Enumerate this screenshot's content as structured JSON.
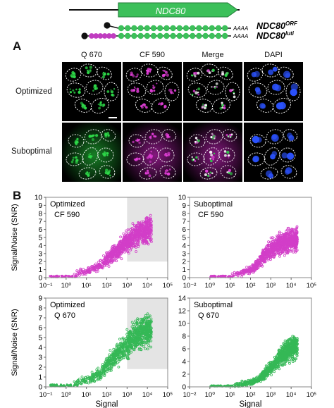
{
  "figure": {
    "gene_diagram": {
      "gene_label": "NDC80",
      "transcripts": [
        {
          "name_main": "NDC80",
          "name_sup": "ORF",
          "polyA": "AAAA"
        },
        {
          "name_main": "NDC80",
          "name_sup": "luti",
          "polyA": "AAAA"
        }
      ]
    },
    "panel_a": {
      "letter": "A",
      "columns": [
        "Q 670",
        "CF 590",
        "Merge",
        "DAPI"
      ],
      "rows": [
        "Optimized",
        "Suboptimal"
      ]
    },
    "panel_b": {
      "letter": "B"
    },
    "colors": {
      "magenta": "#d23ec8",
      "green": "#35b856",
      "gene_green": "#3cc05a",
      "gray_box": "#e4e4e4"
    }
  },
  "chart_data": [
    {
      "type": "scatter",
      "title": "Optimized",
      "subtitle": "CF 590",
      "xlabel": "",
      "ylabel": "Signal/Noise (SNR)",
      "xscale": "log",
      "xlim": [
        0.1,
        100000
      ],
      "ylim": [
        0,
        10
      ],
      "xticks": [
        "10⁻¹",
        "10⁰",
        "10¹",
        "10²",
        "10³",
        "10⁴",
        "10⁵"
      ],
      "yticks": [
        "0",
        "1",
        "2",
        "3",
        "4",
        "5",
        "6",
        "7",
        "8",
        "9",
        "10"
      ],
      "color": "#d23ec8",
      "highlight_box": {
        "x": [
          1000,
          100000
        ],
        "y": [
          2,
          10
        ]
      },
      "trend": [
        [
          1,
          0.4
        ],
        [
          10,
          0.8
        ],
        [
          50,
          1.5
        ],
        [
          100,
          2.3
        ],
        [
          300,
          3.3
        ],
        [
          1000,
          4.5
        ],
        [
          3000,
          5.3
        ],
        [
          10000,
          6.0
        ]
      ]
    },
    {
      "type": "scatter",
      "title": "Suboptimal",
      "subtitle": "CF 590",
      "xlabel": "",
      "ylabel": "",
      "xscale": "log",
      "xlim": [
        0.01,
        100000
      ],
      "ylim": [
        0,
        10
      ],
      "xticks": [
        "10⁻²",
        "10⁰",
        "10¹",
        "10²",
        "10³",
        "10⁴",
        "10⁵"
      ],
      "yticks": [
        "0",
        "1",
        "2",
        "3",
        "4",
        "5",
        "6",
        "7",
        "8",
        "9",
        "10"
      ],
      "color": "#d23ec8",
      "highlight_box": null,
      "trend": [
        [
          1,
          0.3
        ],
        [
          10,
          0.6
        ],
        [
          50,
          1.2
        ],
        [
          100,
          2.0
        ],
        [
          300,
          3.2
        ],
        [
          1000,
          4.0
        ],
        [
          3000,
          4.5
        ],
        [
          10000,
          4.8
        ]
      ]
    },
    {
      "type": "scatter",
      "title": "Optimized",
      "subtitle": "Q 670",
      "xlabel": "Signal",
      "ylabel": "Signal/Noise (SNR)",
      "xscale": "log",
      "xlim": [
        0.1,
        100000
      ],
      "ylim": [
        0,
        9
      ],
      "xticks": [
        "10⁻¹",
        "10⁰",
        "10¹",
        "10²",
        "10³",
        "10⁴",
        "10⁵"
      ],
      "yticks": [
        "0",
        "1",
        "2",
        "3",
        "4",
        "5",
        "6",
        "7",
        "8",
        "9"
      ],
      "color": "#35b856",
      "highlight_box": {
        "x": [
          1000,
          100000
        ],
        "y": [
          1.8,
          9
        ]
      },
      "trend": [
        [
          1,
          0.3
        ],
        [
          10,
          0.7
        ],
        [
          50,
          1.4
        ],
        [
          100,
          2.2
        ],
        [
          300,
          3.3
        ],
        [
          1000,
          4.2
        ],
        [
          3000,
          5.2
        ],
        [
          10000,
          5.8
        ]
      ]
    },
    {
      "type": "scatter",
      "title": "Suboptimal",
      "subtitle": "Q 670",
      "xlabel": "Signal",
      "ylabel": "",
      "xscale": "log",
      "xlim": [
        0.01,
        100000
      ],
      "ylim": [
        0,
        14
      ],
      "xticks": [
        "10⁻²",
        "10⁰",
        "10¹",
        "10²",
        "10³",
        "10⁴",
        "10⁵"
      ],
      "yticks": [
        "0",
        "2",
        "4",
        "6",
        "8",
        "10",
        "12",
        "14"
      ],
      "color": "#35b856",
      "highlight_box": null,
      "trend": [
        [
          1,
          0.2
        ],
        [
          10,
          0.4
        ],
        [
          50,
          0.8
        ],
        [
          100,
          1.3
        ],
        [
          300,
          2.5
        ],
        [
          1000,
          4.0
        ],
        [
          3000,
          5.5
        ],
        [
          10000,
          6.3
        ]
      ]
    }
  ]
}
